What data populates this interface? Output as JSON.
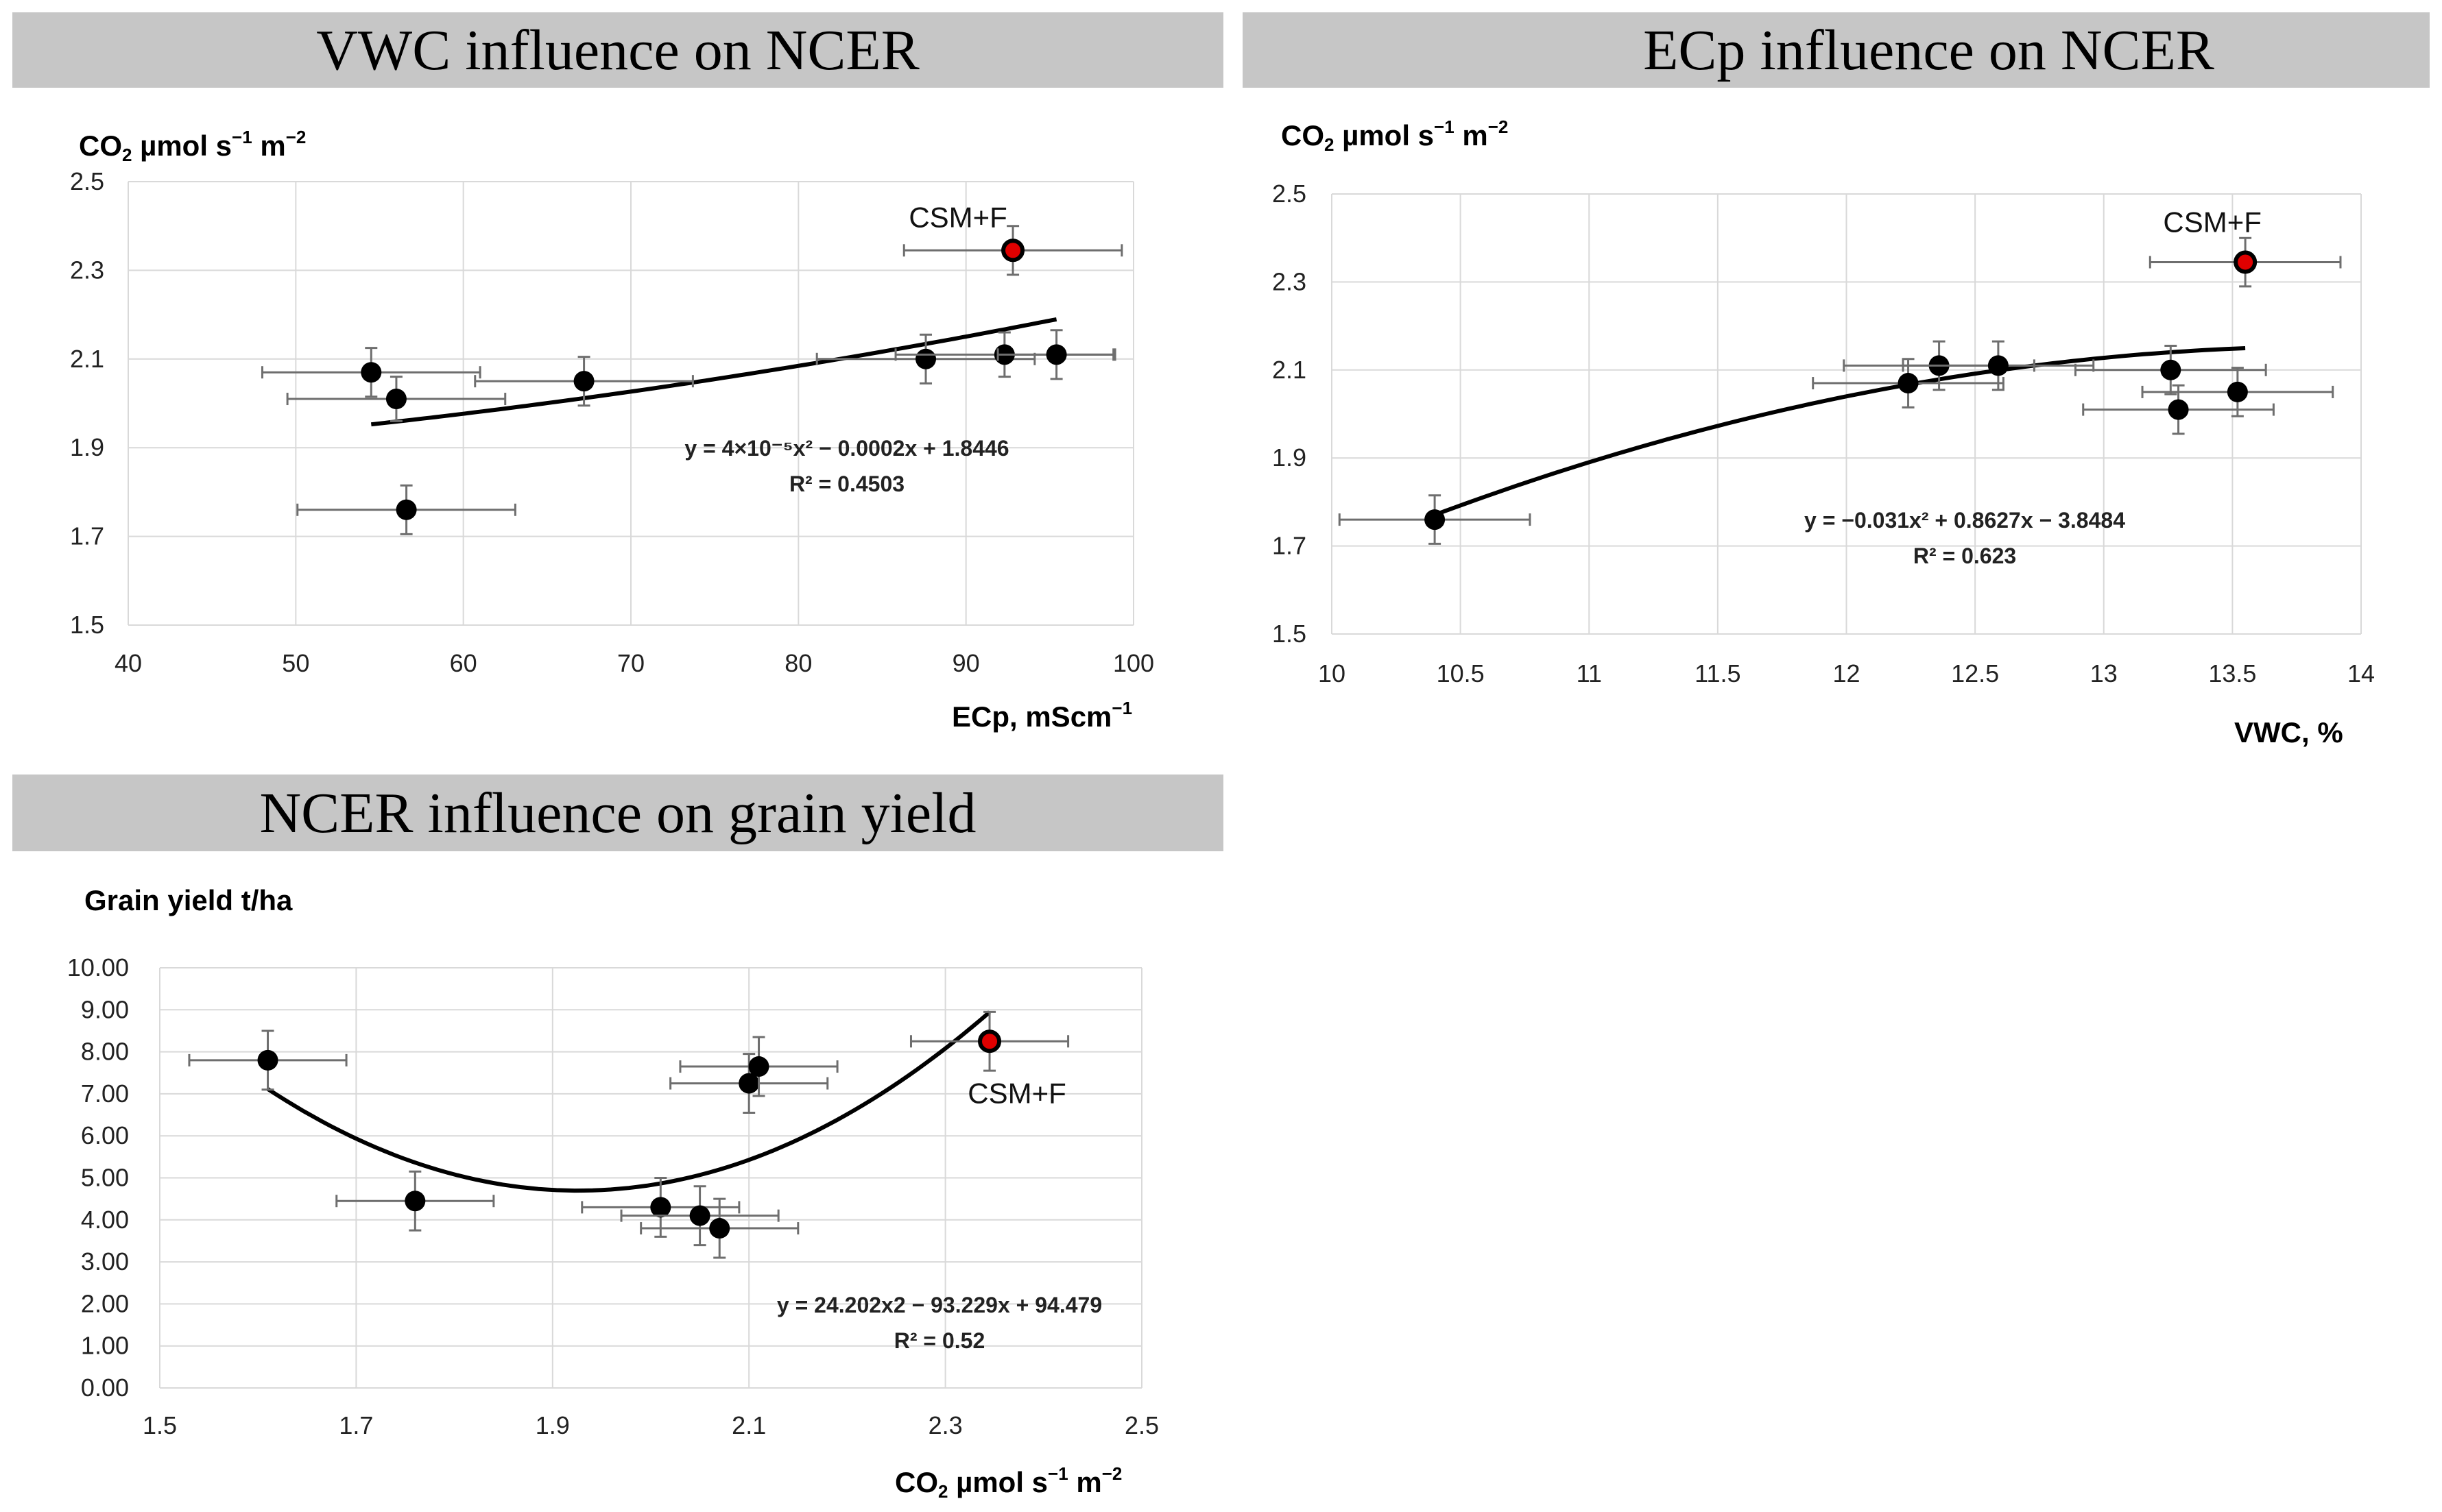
{
  "colors": {
    "banner": "#c6c6c6",
    "grid": "#d9d9d9",
    "point": "#000000",
    "highlight": "#e00000",
    "errorbar": "#6e6e6e"
  },
  "chart_data": [
    {
      "id": "vwc",
      "type": "scatter",
      "title": "VWC influence on NCER",
      "ylabel_main": "CO",
      "ylabel_sub": "2",
      "ylabel_rest": " µmol s",
      "ylabel_sup1": "−1",
      "ylabel_mid": " m",
      "ylabel_sup2": "−2",
      "xlabel_main": "ECp, mScm",
      "xlabel_sup": "−1",
      "xlim": [
        40,
        100
      ],
      "ylim": [
        1.5,
        2.5
      ],
      "xticks": [
        "40",
        "50",
        "60",
        "70",
        "80",
        "90",
        "100"
      ],
      "yticks": [
        "1.5",
        "1.7",
        "1.9",
        "2.1",
        "2.3",
        "2.5"
      ],
      "points": [
        {
          "x": 54.5,
          "y": 2.07,
          "xerr": 6.5,
          "yerr": 0.055
        },
        {
          "x": 56.0,
          "y": 2.01,
          "xerr": 6.5,
          "yerr": 0.05
        },
        {
          "x": 56.6,
          "y": 1.76,
          "xerr": 6.5,
          "yerr": 0.055
        },
        {
          "x": 67.2,
          "y": 2.05,
          "xerr": 6.5,
          "yerr": 0.055
        },
        {
          "x": 87.6,
          "y": 2.1,
          "xerr": 6.5,
          "yerr": 0.055
        },
        {
          "x": 92.3,
          "y": 2.11,
          "xerr": 6.5,
          "yerr": 0.05
        },
        {
          "x": 95.4,
          "y": 2.11,
          "xerr": 3.5,
          "yerr": 0.055
        },
        {
          "x": 92.8,
          "y": 2.345,
          "xerr": 6.5,
          "yerr": 0.055,
          "highlight": true,
          "label": "CSM+F"
        }
      ],
      "trend": {
        "x_from": 54.5,
        "x_to": 95.4,
        "coef": [
          4e-05,
          -0.0002,
          1.8446
        ]
      },
      "equation": "y = 4×10⁻⁵x² − 0.0002x + 1.8446",
      "r2": "R² = 0.4503"
    },
    {
      "id": "ecp",
      "type": "scatter",
      "title": "ECp influence on NCER",
      "ylabel_main": "CO",
      "ylabel_sub": "2",
      "ylabel_rest": " µmol s",
      "ylabel_sup1": "−1",
      "ylabel_mid": " m",
      "ylabel_sup2": "−2",
      "xlabel_main": "VWC, %",
      "xlabel_sup": "",
      "xlim": [
        10,
        14
      ],
      "ylim": [
        1.5,
        2.5
      ],
      "xticks": [
        "10",
        "10.5",
        "11",
        "11.5",
        "12",
        "12.5",
        "13",
        "13.5",
        "14"
      ],
      "yticks": [
        "1.5",
        "1.7",
        "1.9",
        "2.1",
        "2.3",
        "2.5"
      ],
      "points": [
        {
          "x": 10.4,
          "y": 1.76,
          "xerr": 0.37,
          "yerr": 0.055
        },
        {
          "x": 12.24,
          "y": 2.07,
          "xerr": 0.37,
          "yerr": 0.055
        },
        {
          "x": 12.36,
          "y": 2.11,
          "xerr": 0.37,
          "yerr": 0.055
        },
        {
          "x": 12.59,
          "y": 2.11,
          "xerr": 0.37,
          "yerr": 0.055
        },
        {
          "x": 13.26,
          "y": 2.1,
          "xerr": 0.37,
          "yerr": 0.055
        },
        {
          "x": 13.52,
          "y": 2.05,
          "xerr": 0.37,
          "yerr": 0.055
        },
        {
          "x": 13.29,
          "y": 2.01,
          "xerr": 0.37,
          "yerr": 0.055
        },
        {
          "x": 13.55,
          "y": 2.345,
          "xerr": 0.37,
          "yerr": 0.055,
          "highlight": true,
          "label": "CSM+F"
        }
      ],
      "trend": {
        "x_from": 10.4,
        "x_to": 13.55,
        "coef": [
          -0.031,
          0.8627,
          -3.8484
        ]
      },
      "equation": "y = −0.031x² + 0.8627x − 3.8484",
      "r2": "R² = 0.623"
    },
    {
      "id": "ncer",
      "type": "scatter",
      "title": "NCER influence on grain yield",
      "ylabel_main": "Grain yield t/ha",
      "xlabel_main": "CO",
      "xlabel_sub": "2",
      "xlabel_rest": " µmol s",
      "xlabel_sup1": "−1",
      "xlabel_mid": " m",
      "xlabel_sup2": "−2",
      "xlim": [
        1.5,
        2.5
      ],
      "ylim": [
        0,
        10
      ],
      "xticks": [
        "1.5",
        "1.7",
        "1.9",
        "2.1",
        "2.3",
        "2.5"
      ],
      "yticks": [
        "0.00",
        "1.00",
        "2.00",
        "3.00",
        "4.00",
        "5.00",
        "6.00",
        "7.00",
        "8.00",
        "9.00",
        "10.00"
      ],
      "points": [
        {
          "x": 1.61,
          "y": 7.8,
          "xerr": 0.08,
          "yerr": 0.7
        },
        {
          "x": 1.76,
          "y": 4.45,
          "xerr": 0.08,
          "yerr": 0.7
        },
        {
          "x": 2.01,
          "y": 4.3,
          "xerr": 0.08,
          "yerr": 0.7
        },
        {
          "x": 2.05,
          "y": 4.1,
          "xerr": 0.08,
          "yerr": 0.7
        },
        {
          "x": 2.07,
          "y": 3.8,
          "xerr": 0.08,
          "yerr": 0.7
        },
        {
          "x": 2.1,
          "y": 7.25,
          "xerr": 0.08,
          "yerr": 0.7
        },
        {
          "x": 2.11,
          "y": 7.65,
          "xerr": 0.08,
          "yerr": 0.7
        },
        {
          "x": 2.345,
          "y": 8.25,
          "xerr": 0.08,
          "yerr": 0.7,
          "highlight": true,
          "label": "CSM+F"
        }
      ],
      "trend": {
        "x_from": 1.61,
        "x_to": 2.345,
        "coef": [
          24.202,
          -93.229,
          94.479
        ]
      },
      "equation": "y = 24.202x2 − 93.229x + 94.479",
      "r2": "R² = 0.52"
    }
  ]
}
